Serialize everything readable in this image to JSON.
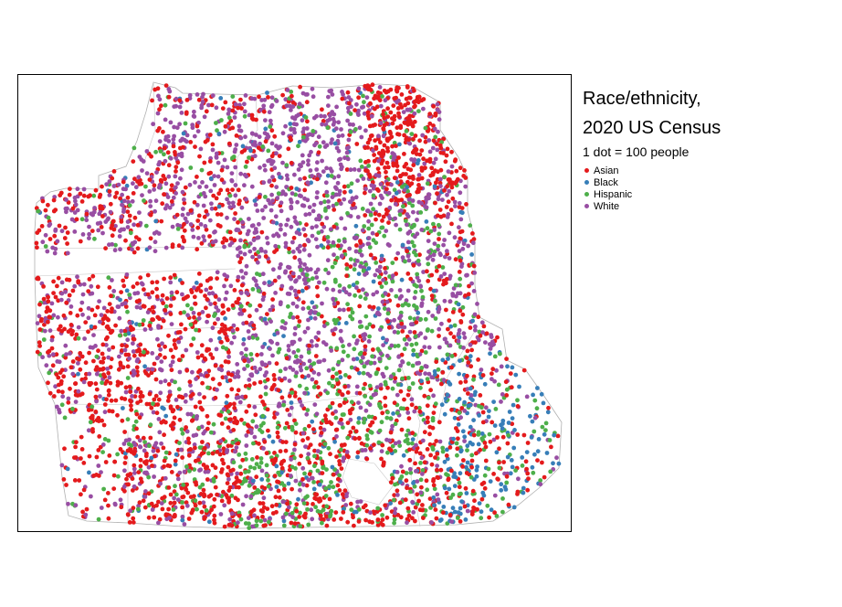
{
  "legend": {
    "title_line1": "Race/ethnicity,",
    "title_line2": "2020 US Census",
    "subtitle": "1 dot = 100 people"
  },
  "chart_data": {
    "type": "dot-density map",
    "title": "Race/ethnicity, 2020 US Census",
    "subtitle": "1 dot = 100 people",
    "people_per_dot": 100,
    "legend_placement": "right",
    "series": [
      {
        "name": "Asian",
        "color": "#e41a1c"
      },
      {
        "name": "Black",
        "color": "#377eb8"
      },
      {
        "name": "Hispanic",
        "color": "#4daf4a"
      },
      {
        "name": "White",
        "color": "#984ea3"
      }
    ]
  }
}
